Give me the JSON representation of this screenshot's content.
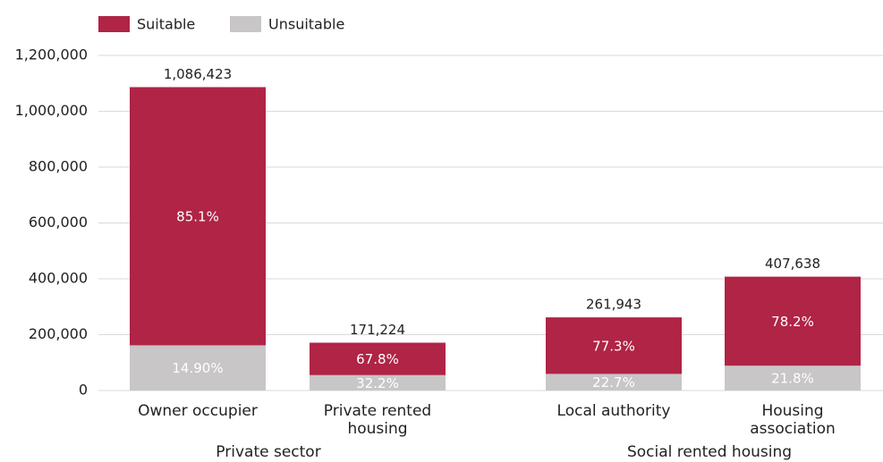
{
  "chart_data": {
    "type": "stacked_bar",
    "categories": [
      "Owner occupier",
      "Private rented housing",
      "Local authority",
      "Housing association"
    ],
    "groups": [
      {
        "name": "Private sector"
      },
      {
        "name": "Social rented housing"
      }
    ],
    "series": [
      {
        "name": "Unsuitable",
        "color": "#c8c6c7",
        "values": [
          161877,
          55134,
          59461,
          88865
        ],
        "percent_labels": [
          "14.90%",
          "32.2%",
          "22.7%",
          "21.8%"
        ]
      },
      {
        "name": "Suitable",
        "color": "#b02446",
        "values": [
          924546,
          116090,
          202482,
          318773
        ],
        "percent_labels": [
          "85.1%",
          "67.8%",
          "77.3%",
          "78.2%"
        ]
      }
    ],
    "totals": [
      1086423,
      171224,
      261943,
      407638
    ],
    "total_labels": [
      "1,086,423",
      "171,224",
      "261,943",
      "407,638"
    ],
    "ylim": [
      0,
      1200000
    ],
    "yticks": [
      0,
      {
        "value": 200000,
        "label": "200,000"
      },
      {
        "value": 400000,
        "label": "400,000"
      },
      {
        "value": 600000,
        "label": "600,000"
      },
      {
        "value": 800000,
        "label": "800,000"
      },
      {
        "value": 1000000,
        "label": "1,000,000"
      },
      {
        "value": 1200000,
        "label": "1,200,000"
      }
    ],
    "grid": true
  }
}
